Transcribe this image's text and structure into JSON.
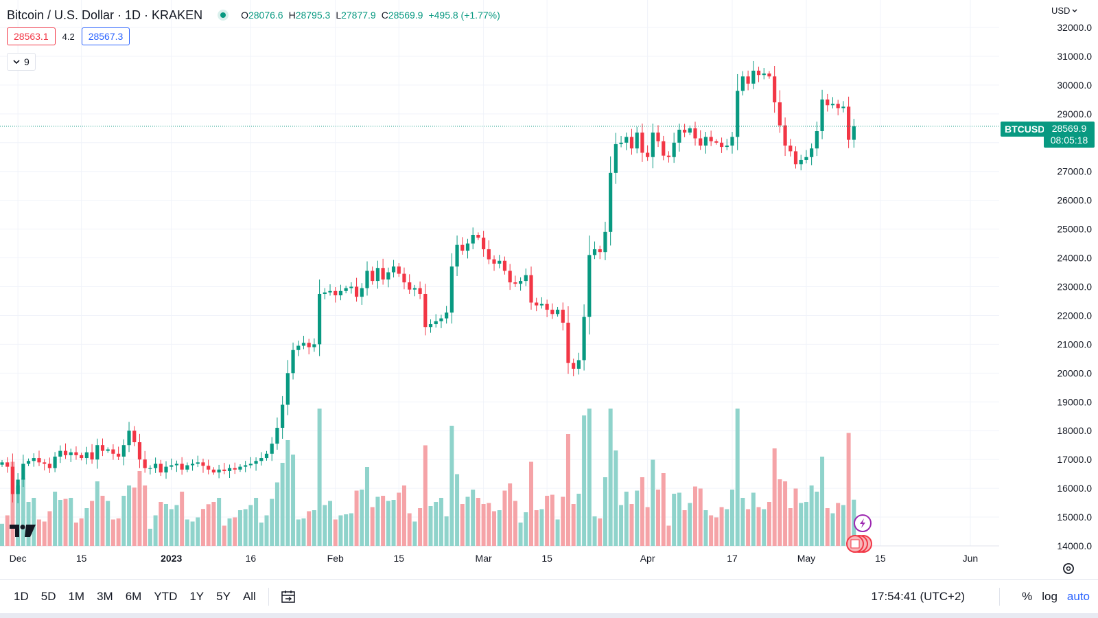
{
  "header": {
    "title": "Bitcoin / U.S. Dollar · 1D · KRAKEN",
    "ohlc": {
      "o_label": "O",
      "o": "28076.6",
      "h_label": "H",
      "h": "28795.3",
      "l_label": "L",
      "l": "27877.9",
      "c_label": "C",
      "c": "28569.9",
      "change": "+495.8 (+1.77%)"
    },
    "bid": "28563.1",
    "spread": "4.2",
    "ask": "28567.3",
    "indicators_count": "9",
    "currency": "USD"
  },
  "price_label": {
    "symbol": "BTCUSD",
    "price": "28569.9",
    "countdown": "08:05:18"
  },
  "bottom_bar": {
    "timeframes": [
      "1D",
      "5D",
      "1M",
      "3M",
      "6M",
      "YTD",
      "1Y",
      "5Y",
      "All"
    ],
    "clock": "17:54:41 (UTC+2)",
    "percent": "%",
    "log": "log",
    "auto": "auto"
  },
  "colors": {
    "up": "#089981",
    "down": "#f23645",
    "vol_up": "#8fd3cb",
    "vol_down": "#f5a3a7",
    "grid": "#f0f3fa"
  },
  "chart_data": {
    "type": "candlestick",
    "title": "Bitcoin / U.S. Dollar · 1D · KRAKEN",
    "y_axis": {
      "min": 14000,
      "max": 32000,
      "ticks": [
        "32000.0",
        "31000.0",
        "30000.0",
        "29000.0",
        "28000.0",
        "27000.0",
        "26000.0",
        "25000.0",
        "24000.0",
        "23000.0",
        "22000.0",
        "21000.0",
        "20000.0",
        "19000.0",
        "18000.0",
        "17000.0",
        "16000.0",
        "15000.0",
        "14000.0"
      ]
    },
    "x_axis": {
      "labels": [
        {
          "text": "Dec",
          "day": 3
        },
        {
          "text": "15",
          "day": 15
        },
        {
          "text": "2023",
          "day": 32
        },
        {
          "text": "16",
          "day": 47
        },
        {
          "text": "Feb",
          "day": 63
        },
        {
          "text": "15",
          "day": 75
        },
        {
          "text": "Mar",
          "day": 91
        },
        {
          "text": "15",
          "day": 103
        },
        {
          "text": "Apr",
          "day": 122
        },
        {
          "text": "17",
          "day": 138
        },
        {
          "text": "May",
          "day": 152
        },
        {
          "text": "15",
          "day": 166
        },
        {
          "text": "Jun",
          "day": 183
        }
      ],
      "start": "2022-11-28",
      "days_visible": 190
    },
    "last_price": 28569.9,
    "ohlc_closes": [
      16900,
      16750,
      15800,
      16300,
      16850,
      16950,
      17050,
      16900,
      16850,
      16700,
      17100,
      17300,
      17150,
      17250,
      17150,
      17050,
      17250,
      17000,
      17500,
      17300,
      17350,
      17200,
      17100,
      17500,
      18000,
      17600,
      17000,
      16700,
      16700,
      16850,
      16550,
      16750,
      16800,
      16850,
      16650,
      16800,
      16850,
      16900,
      16780,
      16650,
      16550,
      16650,
      16600,
      16700,
      16650,
      16750,
      16800,
      16850,
      16950,
      17050,
      17200,
      17550,
      18100,
      18900,
      20000,
      20800,
      20950,
      21050,
      20900,
      21000,
      22750,
      22800,
      22850,
      22700,
      22850,
      22950,
      23000,
      22650,
      22950,
      23550,
      23200,
      23650,
      23250,
      23500,
      23700,
      23450,
      23150,
      22900,
      22950,
      22750,
      21600,
      21700,
      21800,
      21900,
      22100,
      23700,
      24450,
      24250,
      24500,
      24800,
      24700,
      24300,
      23950,
      23800,
      23900,
      23550,
      23150,
      23100,
      23200,
      23400,
      22450,
      22350,
      22400,
      22200,
      22050,
      22200,
      21750,
      20350,
      20150,
      20450,
      21950,
      24100,
      24300,
      24200,
      24900,
      26950,
      27950,
      28000,
      28200,
      27800,
      28350,
      27650,
      27500,
      28350,
      28050,
      27550,
      27500,
      28000,
      28450,
      28350,
      28500,
      28150,
      27900,
      28200,
      28050,
      28000,
      27850,
      27900,
      28200,
      29800,
      30300,
      30050,
      30500,
      30350,
      30400,
      30300,
      29400,
      28600,
      27900,
      27700,
      27250,
      27400,
      27500,
      27800,
      28400,
      29500,
      29300,
      29350,
      29200,
      29250,
      28100,
      28570
    ],
    "volume_note": "volume bars coloured by candle direction"
  }
}
